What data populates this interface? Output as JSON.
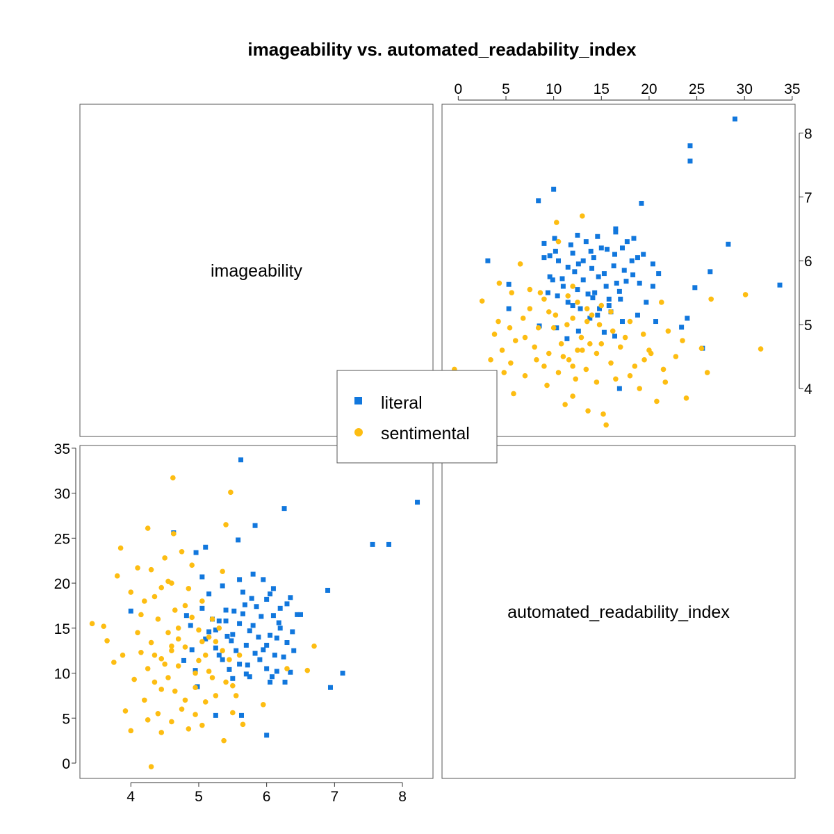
{
  "chart_data": {
    "type": "scatter",
    "title": "imageability vs. automated_readability_index",
    "variables": [
      "imageability",
      "automated_readability_index"
    ],
    "axes": {
      "imageability": {
        "range": [
          3.25,
          8.45
        ],
        "ticks": [
          4,
          5,
          6,
          7,
          8
        ],
        "tick_labels": [
          "4",
          "5",
          "6",
          "7",
          "8"
        ]
      },
      "automated_readability_index": {
        "range": [
          -1.7,
          35.3
        ],
        "ticks": [
          0,
          5,
          10,
          15,
          20,
          25,
          30,
          35
        ],
        "tick_labels": [
          "0",
          "5",
          "10",
          "15",
          "20",
          "25",
          "30",
          "35"
        ]
      }
    },
    "legend": {
      "placement": "center",
      "entries": [
        {
          "label": "literal",
          "marker": "square",
          "color": "#1177DD"
        },
        {
          "label": "sentimental",
          "marker": "circle",
          "color": "#FDBD12"
        }
      ]
    },
    "series": [
      {
        "name": "literal",
        "marker": "square",
        "color": "#1177DD",
        "points": [
          [
            8.22,
            29.0
          ],
          [
            7.8,
            24.3
          ],
          [
            7.56,
            24.3
          ],
          [
            7.12,
            10.0
          ],
          [
            6.94,
            8.4
          ],
          [
            6.9,
            19.2
          ],
          [
            6.26,
            28.3
          ],
          [
            5.62,
            33.7
          ],
          [
            6.0,
            3.1
          ],
          [
            5.63,
            5.3
          ],
          [
            5.25,
            5.3
          ],
          [
            4.98,
            8.5
          ],
          [
            4.63,
            25.6
          ],
          [
            4.96,
            23.4
          ],
          [
            5.1,
            24.0
          ],
          [
            5.58,
            24.8
          ],
          [
            5.83,
            26.4
          ],
          [
            6.45,
            16.5
          ],
          [
            6.0,
            18.2
          ],
          [
            6.1,
            16.4
          ],
          [
            6.2,
            15.0
          ],
          [
            5.5,
            14.3
          ],
          [
            5.7,
            13.1
          ],
          [
            5.3,
            12.0
          ],
          [
            5.9,
            11.5
          ],
          [
            6.15,
            10.2
          ],
          [
            5.45,
            10.4
          ],
          [
            5.75,
            9.6
          ],
          [
            5.05,
            17.2
          ],
          [
            5.2,
            16.0
          ],
          [
            5.85,
            17.4
          ],
          [
            6.35,
            18.4
          ],
          [
            5.35,
            19.7
          ],
          [
            5.6,
            20.4
          ],
          [
            6.05,
            14.2
          ],
          [
            5.95,
            12.6
          ],
          [
            5.4,
            15.8
          ],
          [
            5.15,
            14.6
          ],
          [
            4.82,
            16.4
          ],
          [
            5.6,
            11.0
          ],
          [
            6.3,
            13.4
          ],
          [
            6.25,
            11.8
          ],
          [
            5.65,
            16.6
          ],
          [
            5.8,
            15.3
          ],
          [
            5.55,
            12.5
          ],
          [
            5.7,
            9.9
          ],
          [
            6.05,
            9.0
          ],
          [
            4.95,
            10.3
          ],
          [
            4.9,
            12.6
          ],
          [
            5.78,
            18.3
          ],
          [
            6.1,
            19.4
          ],
          [
            6.38,
            14.6
          ],
          [
            4.0,
            16.9
          ],
          [
            6.5,
            16.5
          ],
          [
            5.25,
            14.8
          ],
          [
            6.2,
            17.2
          ],
          [
            6.0,
            10.5
          ],
          [
            5.48,
            13.6
          ],
          [
            6.4,
            12.5
          ],
          [
            5.3,
            15.8
          ],
          [
            5.1,
            13.8
          ],
          [
            4.78,
            11.4
          ],
          [
            5.88,
            14.0
          ],
          [
            6.12,
            12.0
          ],
          [
            5.92,
            16.3
          ],
          [
            5.72,
            10.9
          ],
          [
            6.08,
            9.6
          ],
          [
            5.5,
            9.4
          ],
          [
            6.27,
            9.0
          ],
          [
            5.4,
            17.0
          ],
          [
            5.65,
            19.0
          ],
          [
            5.8,
            21.0
          ],
          [
            5.95,
            20.4
          ],
          [
            6.18,
            15.6
          ],
          [
            6.3,
            17.7
          ],
          [
            5.35,
            11.5
          ],
          [
            5.15,
            18.8
          ],
          [
            4.88,
            15.3
          ],
          [
            5.05,
            20.7
          ],
          [
            5.75,
            14.7
          ],
          [
            6.0,
            13.1
          ],
          [
            5.42,
            14.1
          ],
          [
            5.6,
            15.5
          ],
          [
            5.83,
            12.2
          ],
          [
            6.15,
            13.9
          ],
          [
            5.25,
            12.8
          ],
          [
            5.52,
            16.9
          ],
          [
            5.68,
            17.6
          ],
          [
            6.35,
            10.1
          ],
          [
            6.05,
            18.8
          ]
        ]
      },
      {
        "name": "sentimental",
        "marker": "circle",
        "color": "#FDBD12",
        "points": [
          [
            4.3,
            -0.4
          ],
          [
            5.37,
            2.5
          ],
          [
            4.62,
            31.7
          ],
          [
            5.47,
            30.1
          ],
          [
            5.4,
            26.5
          ],
          [
            4.25,
            26.1
          ],
          [
            4.63,
            25.5
          ],
          [
            3.43,
            15.5
          ],
          [
            3.6,
            15.2
          ],
          [
            3.65,
            13.6
          ],
          [
            3.75,
            11.2
          ],
          [
            3.85,
            23.9
          ],
          [
            3.8,
            20.8
          ],
          [
            3.88,
            12.0
          ],
          [
            4.0,
            3.6
          ],
          [
            3.92,
            5.8
          ],
          [
            4.45,
            3.4
          ],
          [
            4.85,
            3.8
          ],
          [
            5.05,
            4.2
          ],
          [
            5.65,
            4.3
          ],
          [
            4.2,
            7.0
          ],
          [
            4.35,
            9.0
          ],
          [
            4.5,
            11.0
          ],
          [
            4.6,
            13.0
          ],
          [
            4.7,
            15.0
          ],
          [
            4.8,
            17.5
          ],
          [
            4.45,
            19.5
          ],
          [
            4.3,
            21.5
          ],
          [
            4.6,
            20.0
          ],
          [
            4.9,
            22.0
          ],
          [
            5.05,
            18.0
          ],
          [
            5.2,
            16.0
          ],
          [
            4.55,
            9.5
          ],
          [
            4.65,
            8.0
          ],
          [
            4.75,
            6.0
          ],
          [
            4.95,
            10.0
          ],
          [
            5.1,
            12.0
          ],
          [
            5.25,
            13.5
          ],
          [
            5.35,
            12.5
          ],
          [
            5.45,
            11.5
          ],
          [
            5.55,
            7.5
          ],
          [
            4.1,
            14.5
          ],
          [
            4.15,
            12.3
          ],
          [
            4.25,
            10.5
          ],
          [
            4.4,
            16.0
          ],
          [
            5.0,
            14.8
          ],
          [
            5.3,
            15.0
          ],
          [
            4.85,
            19.4
          ],
          [
            4.7,
            10.8
          ],
          [
            4.2,
            18.0
          ],
          [
            4.5,
            22.8
          ],
          [
            6.7,
            13.0
          ],
          [
            6.6,
            10.3
          ],
          [
            6.3,
            10.5
          ],
          [
            5.95,
            6.5
          ],
          [
            5.5,
            8.6
          ],
          [
            4.05,
            9.3
          ],
          [
            4.35,
            12.0
          ],
          [
            4.55,
            14.5
          ],
          [
            4.8,
            12.9
          ],
          [
            5.15,
            10.2
          ],
          [
            4.95,
            8.4
          ],
          [
            5.1,
            6.8
          ],
          [
            4.4,
            5.5
          ],
          [
            4.6,
            4.6
          ],
          [
            4.25,
            4.8
          ],
          [
            5.2,
            9.5
          ],
          [
            4.7,
            13.8
          ],
          [
            4.9,
            16.2
          ],
          [
            5.05,
            13.5
          ],
          [
            4.45,
            11.6
          ],
          [
            4.3,
            13.4
          ],
          [
            4.75,
            23.5
          ],
          [
            4.1,
            21.7
          ],
          [
            4.0,
            19.0
          ],
          [
            5.35,
            21.3
          ],
          [
            5.5,
            5.6
          ],
          [
            4.65,
            17.0
          ],
          [
            4.45,
            8.2
          ],
          [
            5.25,
            7.5
          ],
          [
            4.55,
            20.2
          ],
          [
            4.15,
            16.5
          ],
          [
            5.0,
            11.4
          ],
          [
            5.4,
            9.0
          ],
          [
            4.8,
            7.0
          ],
          [
            5.6,
            12.0
          ],
          [
            4.35,
            18.5
          ],
          [
            5.15,
            14.0
          ],
          [
            4.6,
            12.5
          ],
          [
            4.95,
            5.4
          ]
        ]
      }
    ]
  }
}
